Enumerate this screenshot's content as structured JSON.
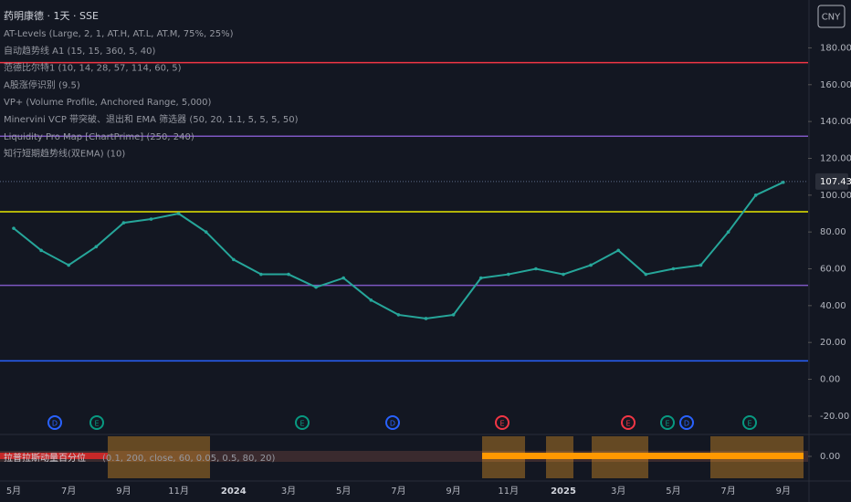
{
  "chart_data": {
    "type": "line",
    "title": "药明康德 · 1天 · SSE",
    "indicators": [
      "AT-Levels (Large, 2, 1, AT.H, AT.L, AT.M, 75%, 25%)",
      "自动趋势线 A1 (15, 15, 360, 5, 40)",
      "范德比尔特1 (10, 14, 28, 57, 114, 60, 5)",
      "A股涨停识别 (9.5)",
      "VP+ (Volume Profile, Anchored Range, 5,000)",
      "Minervini VCP 带突破、退出和 EMA 筛选器 (50, 20, 1.1, 5, 5, 5, 50)",
      "Liquidity Pro Map [ChartPrime] (250, 240)",
      "知行短期趋势线(双EMA) (10)"
    ],
    "currency": "CNY",
    "categories": [
      "5月",
      null,
      "7月",
      null,
      "9月",
      null,
      "11月",
      null,
      "2024",
      null,
      "3月",
      null,
      "5月",
      null,
      "7月",
      null,
      "9月",
      null,
      "11月",
      null,
      "2025",
      null,
      "3月",
      null,
      "5月",
      null,
      "7月",
      null,
      "9月"
    ],
    "values": [
      82,
      70,
      62,
      72,
      85,
      87,
      90,
      80,
      65,
      57,
      57,
      50,
      55,
      43,
      35,
      33,
      35,
      55,
      57,
      60,
      57,
      62,
      70,
      57,
      60,
      62,
      80,
      100,
      107
    ],
    "color": "#26a69a",
    "last_price": 107.43,
    "levels": [
      {
        "value": 172,
        "color": "#f23645"
      },
      {
        "value": 132,
        "color": "#7e57c2"
      },
      {
        "value": 91,
        "color": "#e6e600"
      },
      {
        "value": 51,
        "color": "#7e57c2"
      },
      {
        "value": 10,
        "color": "#2962ff"
      }
    ],
    "ylim": [
      -27,
      206
    ],
    "yticks": [
      {
        "value": 180,
        "label": "180.00"
      },
      {
        "value": 160,
        "label": "160.00"
      },
      {
        "value": 140,
        "label": "140.00"
      },
      {
        "value": 120,
        "label": "120.00"
      },
      {
        "value": 100,
        "label": "100.00"
      },
      {
        "value": 80,
        "label": "80.00"
      },
      {
        "value": 60,
        "label": "60.00"
      },
      {
        "value": 40,
        "label": "40.00"
      },
      {
        "value": 20,
        "label": "20.00"
      },
      {
        "value": 0,
        "label": "0.00"
      },
      {
        "value": -20,
        "label": "-20.00"
      }
    ],
    "events": [
      {
        "label": "D",
        "color": "#2962ff"
      },
      {
        "label": "E",
        "color": "#089981"
      },
      {
        "label": "E",
        "color": "#089981"
      },
      {
        "label": "D",
        "color": "#2962ff"
      },
      {
        "label": "E",
        "color": "#f23645"
      },
      {
        "label": "E",
        "color": "#f23645"
      },
      {
        "label": "E",
        "color": "#089981"
      },
      {
        "label": "D",
        "color": "#2962ff"
      },
      {
        "label": "E",
        "color": "#089981"
      }
    ],
    "oscillator": {
      "title": "拉普拉斯动量百分位",
      "params": "(0.1, 200, close, 60, 0.05, 0.5, 80, 20)",
      "ytick": {
        "value": 0,
        "label": "0.00"
      }
    }
  }
}
